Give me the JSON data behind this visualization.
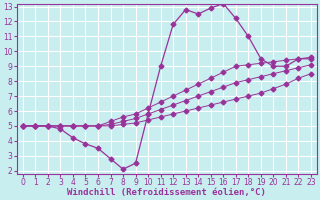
{
  "xlabel": "Windchill (Refroidissement éolien,°C)",
  "xlabel_fontsize": 6.5,
  "background_color": "#c8eef0",
  "grid_color": "#ffffff",
  "line_color": "#993399",
  "xlim": [
    -0.5,
    23.5
  ],
  "ylim": [
    1.8,
    13.2
  ],
  "xticks": [
    0,
    1,
    2,
    3,
    4,
    5,
    6,
    7,
    8,
    9,
    10,
    11,
    12,
    13,
    14,
    15,
    16,
    17,
    18,
    19,
    20,
    21,
    22,
    23
  ],
  "yticks": [
    2,
    3,
    4,
    5,
    6,
    7,
    8,
    9,
    10,
    11,
    12,
    13
  ],
  "curve_zigzag_x": [
    0,
    1,
    2,
    3,
    4,
    5,
    6,
    7,
    8,
    9,
    10,
    11,
    12,
    13,
    14,
    15,
    16,
    17,
    18,
    19,
    20,
    21,
    22,
    23
  ],
  "curve_zigzag_y": [
    5,
    5,
    5,
    4.8,
    4.2,
    3.8,
    3.5,
    2.8,
    2.1,
    2.5,
    5.8,
    9.0,
    11.8,
    12.8,
    12.5,
    12.9,
    13.2,
    12.2,
    11.0,
    9.5,
    9.0,
    9.0,
    9.5,
    9.5
  ],
  "line_top_x": [
    0,
    1,
    2,
    3,
    4,
    5,
    6,
    7,
    8,
    9,
    10,
    11,
    12,
    13,
    14,
    15,
    16,
    17,
    18,
    19,
    20,
    21,
    22,
    23
  ],
  "line_top_y": [
    5,
    5,
    5,
    5,
    5,
    5,
    5,
    5.3,
    5.6,
    5.8,
    6.2,
    6.6,
    7.0,
    7.4,
    7.8,
    8.2,
    8.6,
    9.0,
    9.1,
    9.2,
    9.3,
    9.4,
    9.5,
    9.6
  ],
  "line_mid_x": [
    0,
    1,
    2,
    3,
    4,
    5,
    6,
    7,
    8,
    9,
    10,
    11,
    12,
    13,
    14,
    15,
    16,
    17,
    18,
    19,
    20,
    21,
    22,
    23
  ],
  "line_mid_y": [
    5,
    5,
    5,
    5,
    5,
    5,
    5,
    5.1,
    5.3,
    5.5,
    5.8,
    6.1,
    6.4,
    6.7,
    7.0,
    7.3,
    7.6,
    7.9,
    8.1,
    8.3,
    8.5,
    8.7,
    8.9,
    9.1
  ],
  "line_low_x": [
    0,
    1,
    2,
    3,
    4,
    5,
    6,
    7,
    8,
    9,
    10,
    11,
    12,
    13,
    14,
    15,
    16,
    17,
    18,
    19,
    20,
    21,
    22,
    23
  ],
  "line_low_y": [
    5,
    5,
    5,
    5,
    5,
    5,
    5,
    5.0,
    5.1,
    5.2,
    5.4,
    5.6,
    5.8,
    6.0,
    6.2,
    6.4,
    6.6,
    6.8,
    7.0,
    7.2,
    7.5,
    7.8,
    8.2,
    8.5
  ],
  "marker_size": 2.5,
  "spine_color": "#993399",
  "tick_fontsize": 5.5
}
